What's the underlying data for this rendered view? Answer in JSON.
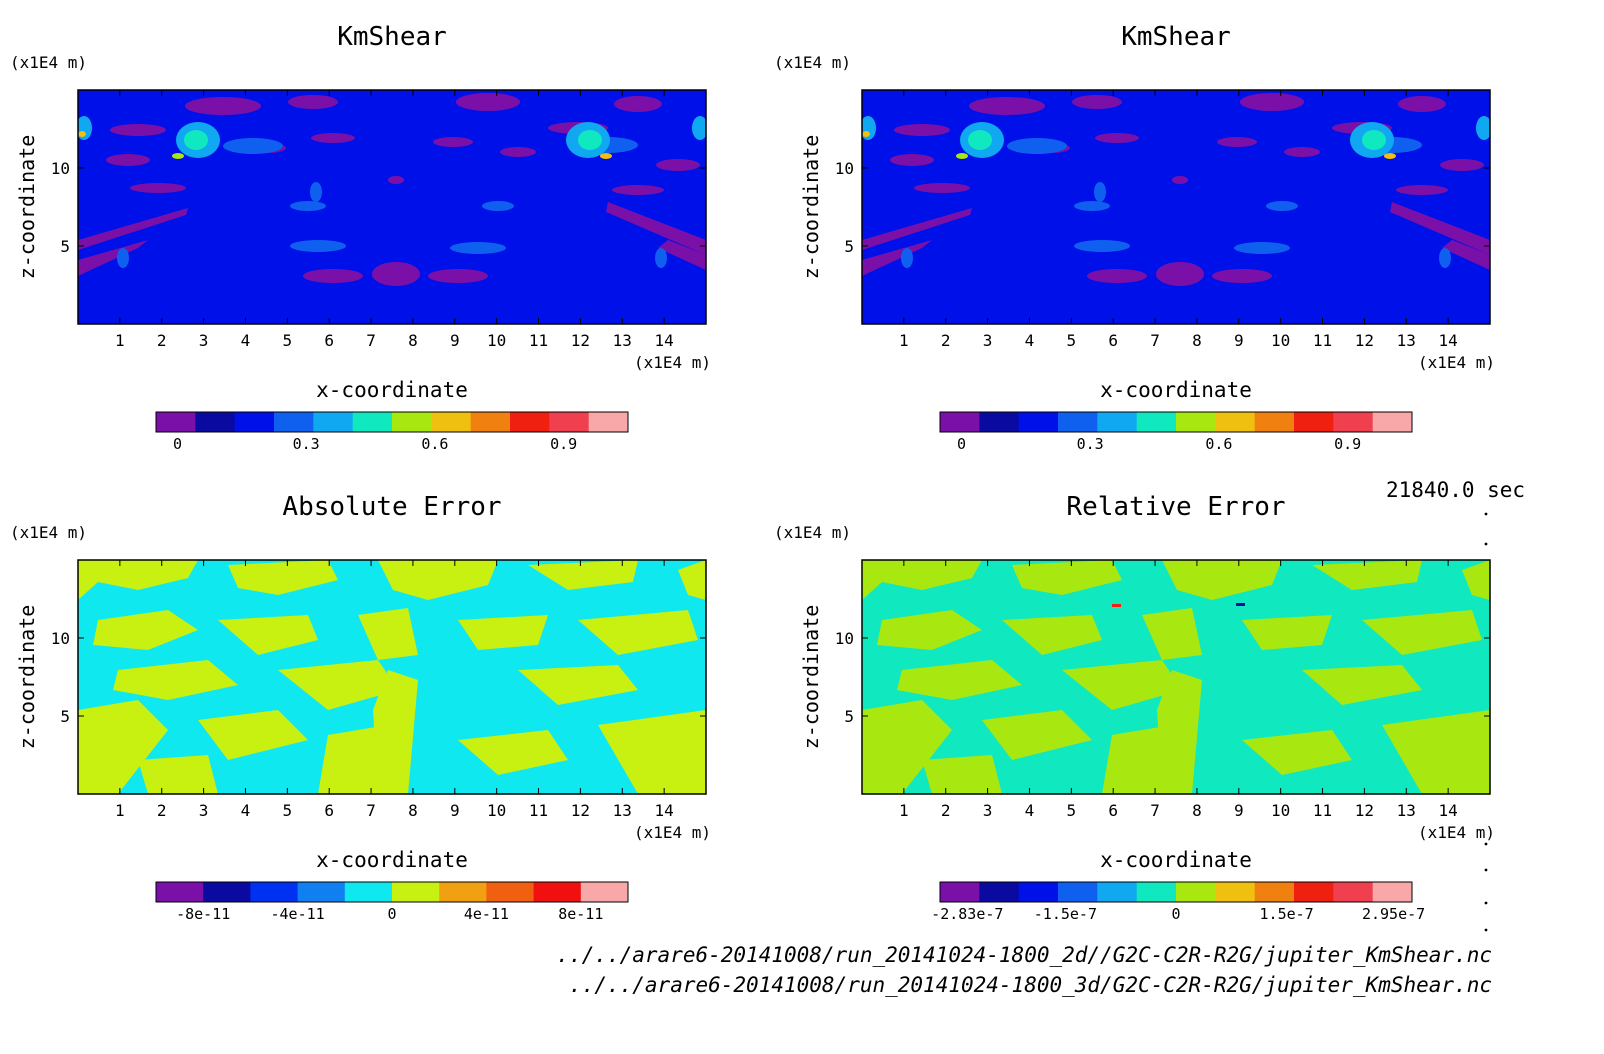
{
  "time_label": "21840.0 sec",
  "footer": {
    "file_2d": "../../arare6-20141008/run_20141024-1800_2d//G2C-C2R-R2G/jupiter_KmShear.nc",
    "file_3d": "../../arare6-20141008/run_20141024-1800_3d/G2C-C2R-R2G/jupiter_KmShear.nc"
  },
  "chart_data": [
    {
      "type": "heatmap",
      "title": "KmShear",
      "xlabel": "x-coordinate",
      "ylabel": "z-coordinate",
      "x_unit": "(x1E4 m)",
      "y_unit": "(x1E4 m)",
      "xlim": [
        0,
        15
      ],
      "ylim": [
        0,
        15
      ],
      "x_ticks": [
        "1",
        "2",
        "3",
        "4",
        "5",
        "6",
        "7",
        "8",
        "9",
        "10",
        "11",
        "12",
        "13",
        "14"
      ],
      "y_ticks": [
        "5",
        "10"
      ],
      "colorbar": {
        "colors": [
          "#7a10a8",
          "#0a0aa0",
          "#0010e8",
          "#1060f0",
          "#10a8f0",
          "#10e8c0",
          "#a8e810",
          "#f0c010",
          "#f08010",
          "#f02010",
          "#f04050",
          "#f8a8a8"
        ],
        "tick_labels": [
          "0",
          "0.3",
          "0.6",
          "0.9"
        ],
        "range": [
          -0.05,
          1.05
        ],
        "tick_values": [
          0,
          0.3,
          0.6,
          0.9
        ]
      }
    },
    {
      "type": "heatmap",
      "title": "KmShear",
      "xlabel": "x-coordinate",
      "ylabel": "z-coordinate",
      "x_unit": "(x1E4 m)",
      "y_unit": "(x1E4 m)",
      "xlim": [
        0,
        15
      ],
      "ylim": [
        0,
        15
      ],
      "x_ticks": [
        "1",
        "2",
        "3",
        "4",
        "5",
        "6",
        "7",
        "8",
        "9",
        "10",
        "11",
        "12",
        "13",
        "14"
      ],
      "y_ticks": [
        "5",
        "10"
      ],
      "colorbar": {
        "colors": [
          "#7a10a8",
          "#0a0aa0",
          "#0010e8",
          "#1060f0",
          "#10a8f0",
          "#10e8c0",
          "#a8e810",
          "#f0c010",
          "#f08010",
          "#f02010",
          "#f04050",
          "#f8a8a8"
        ],
        "tick_labels": [
          "0",
          "0.3",
          "0.6",
          "0.9"
        ],
        "range": [
          -0.05,
          1.05
        ],
        "tick_values": [
          0,
          0.3,
          0.6,
          0.9
        ]
      }
    },
    {
      "type": "heatmap",
      "title": "Absolute Error",
      "xlabel": "x-coordinate",
      "ylabel": "z-coordinate",
      "x_unit": "(x1E4 m)",
      "y_unit": "(x1E4 m)",
      "xlim": [
        0,
        15
      ],
      "ylim": [
        0,
        15
      ],
      "x_ticks": [
        "1",
        "2",
        "3",
        "4",
        "5",
        "6",
        "7",
        "8",
        "9",
        "10",
        "11",
        "12",
        "13",
        "14"
      ],
      "y_ticks": [
        "5",
        "10"
      ],
      "colorbar": {
        "colors": [
          "#7a10a8",
          "#0a0aa0",
          "#0030f0",
          "#1080f0",
          "#10e8f0",
          "#c8f010",
          "#f0a010",
          "#f06010",
          "#f01010",
          "#f8a8a8"
        ],
        "tick_labels": [
          "-8e-11",
          "-4e-11",
          "0",
          "4e-11",
          "8e-11"
        ],
        "range": [
          -1e-10,
          1e-10
        ],
        "tick_values": [
          -8e-11,
          -4e-11,
          0,
          4e-11,
          8e-11
        ]
      }
    },
    {
      "type": "heatmap",
      "title": "Relative Error",
      "xlabel": "x-coordinate",
      "ylabel": "z-coordinate",
      "x_unit": "(x1E4 m)",
      "y_unit": "(x1E4 m)",
      "xlim": [
        0,
        15
      ],
      "ylim": [
        0,
        15
      ],
      "x_ticks": [
        "1",
        "2",
        "3",
        "4",
        "5",
        "6",
        "7",
        "8",
        "9",
        "10",
        "11",
        "12",
        "13",
        "14"
      ],
      "y_ticks": [
        "5",
        "10"
      ],
      "colorbar": {
        "colors": [
          "#7a10a8",
          "#0a0aa0",
          "#0010e8",
          "#1060f0",
          "#10a8f0",
          "#10e8c0",
          "#a8e810",
          "#f0c010",
          "#f08010",
          "#f02010",
          "#f04050",
          "#f8a8a8"
        ],
        "tick_labels": [
          "-2.83e-7",
          "-1.5e-7",
          "0",
          "1.5e-7",
          "2.95e-7"
        ],
        "range": [
          -3.2e-07,
          3.2e-07
        ],
        "tick_values": [
          -2.83e-07,
          -1.5e-07,
          0,
          1.5e-07,
          2.95e-07
        ]
      }
    }
  ]
}
